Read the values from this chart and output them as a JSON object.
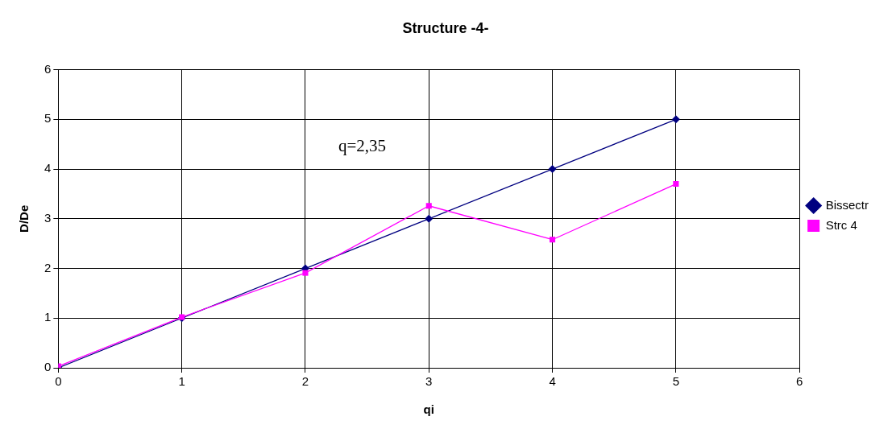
{
  "chart_data": {
    "type": "line",
    "title": "Structure -4-",
    "xlabel": "qi",
    "ylabel": "D/De",
    "x": [
      0,
      1,
      2,
      3,
      4,
      5
    ],
    "series": [
      {
        "name": "Bissectr",
        "color": "#000080",
        "marker": "diamond",
        "values": [
          0,
          1,
          2,
          3,
          4,
          5
        ]
      },
      {
        "name": "Strc 4",
        "color": "#ff00ff",
        "marker": "square",
        "values": [
          0.03,
          1.02,
          1.91,
          3.26,
          2.58,
          3.7
        ]
      }
    ],
    "xlim": [
      0,
      6
    ],
    "xticks": [
      0,
      1,
      2,
      3,
      4,
      5,
      6
    ],
    "ylim": [
      0,
      6
    ],
    "yticks": [
      0,
      1,
      2,
      3,
      4,
      5,
      6
    ],
    "grid": true,
    "legend": "right",
    "annotations": [
      "q=2,35"
    ]
  }
}
